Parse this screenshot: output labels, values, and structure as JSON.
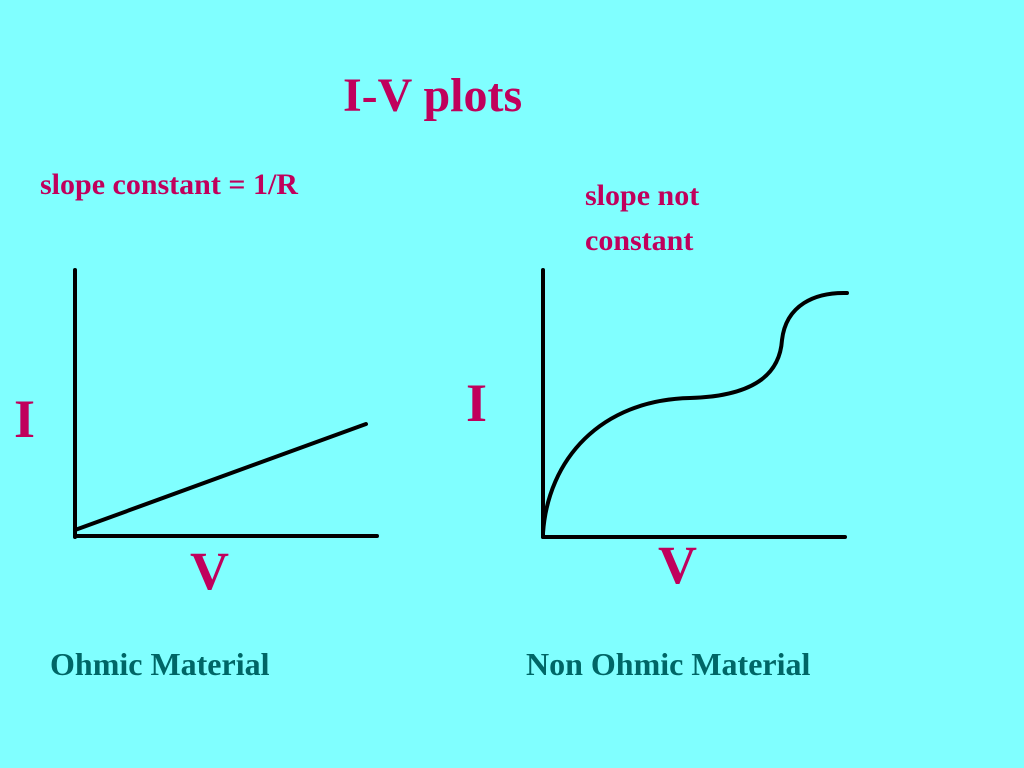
{
  "title": "I-V plots",
  "panels": [
    {
      "note": "slope constant = 1/R",
      "y_label": "I",
      "x_label": "V",
      "caption": "Ohmic Material"
    },
    {
      "note": "slope not constant",
      "y_label": "I",
      "x_label": "V",
      "caption": "Non Ohmic Material"
    }
  ]
}
